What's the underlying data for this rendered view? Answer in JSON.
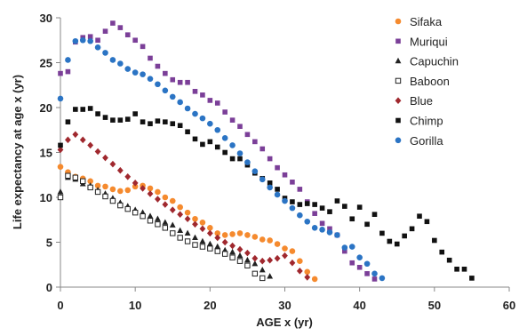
{
  "chart_data": {
    "type": "scatter",
    "xlabel": "AGE x (yr)",
    "ylabel": "Life expectancy at age x (yr)",
    "xlim": [
      0,
      60
    ],
    "ylim": [
      0,
      30
    ],
    "xticks": [
      "0",
      "10",
      "20",
      "30",
      "40",
      "50",
      "60"
    ],
    "yticks": [
      "0",
      "5",
      "10",
      "15",
      "20",
      "25",
      "30"
    ],
    "grid": false,
    "legend_position": "top-right",
    "series": [
      {
        "name": "Sifaka",
        "color": "#f58a2e",
        "marker": "circle",
        "x": [
          0,
          1,
          2,
          3,
          4,
          5,
          6,
          7,
          8,
          9,
          10,
          11,
          12,
          13,
          14,
          15,
          16,
          17,
          18,
          19,
          20,
          21,
          22,
          23,
          24,
          25,
          26,
          27,
          28,
          29,
          30,
          31,
          32,
          33,
          34
        ],
        "y": [
          13.4,
          12.8,
          12.3,
          12.1,
          11.8,
          11.3,
          11.2,
          10.9,
          10.7,
          10.8,
          11.2,
          11.3,
          11.0,
          10.6,
          10.0,
          9.6,
          8.9,
          8.3,
          7.6,
          7.2,
          6.6,
          6.0,
          5.8,
          5.9,
          6.0,
          5.8,
          5.6,
          5.3,
          5.2,
          4.8,
          4.3,
          4.0,
          2.9,
          1.7,
          0.9
        ]
      },
      {
        "name": "Muriqui",
        "color": "#7b3f98",
        "marker": "square",
        "x": [
          0,
          1,
          2,
          3,
          4,
          5,
          6,
          7,
          8,
          9,
          10,
          11,
          12,
          13,
          14,
          15,
          16,
          17,
          18,
          19,
          20,
          21,
          22,
          23,
          24,
          25,
          26,
          27,
          28,
          29,
          30,
          31,
          32,
          33,
          34,
          35,
          36,
          37,
          38,
          39,
          40,
          41,
          42
        ],
        "y": [
          23.8,
          24.0,
          27.3,
          27.8,
          27.9,
          27.5,
          28.5,
          29.4,
          28.9,
          28.1,
          27.5,
          26.8,
          25.5,
          24.6,
          23.8,
          23.1,
          22.8,
          22.8,
          21.8,
          21.4,
          20.8,
          20.5,
          19.5,
          18.6,
          17.9,
          17.0,
          16.2,
          15.4,
          14.3,
          13.3,
          12.5,
          11.7,
          10.9,
          9.5,
          8.2,
          7.1,
          6.5,
          5.8,
          4.0,
          2.7,
          2.2,
          1.5,
          0.9
        ]
      },
      {
        "name": "Capuchin",
        "color": "#222222",
        "marker": "triangle",
        "x": [
          0,
          1,
          2,
          3,
          4,
          5,
          6,
          7,
          8,
          9,
          10,
          11,
          12,
          13,
          14,
          15,
          16,
          17,
          18,
          19,
          20,
          21,
          22,
          23,
          24,
          25,
          26,
          27,
          28
        ],
        "y": [
          10.6,
          12.2,
          12.0,
          11.5,
          11.3,
          10.8,
          10.4,
          9.9,
          9.4,
          9.0,
          8.6,
          8.3,
          7.9,
          7.6,
          7.2,
          6.9,
          6.3,
          6.0,
          5.5,
          5.1,
          4.8,
          4.5,
          4.1,
          3.9,
          3.5,
          3.0,
          2.6,
          1.9,
          1.2
        ]
      },
      {
        "name": "Baboon",
        "color": "#222222",
        "marker": "open-square",
        "x": [
          0,
          1,
          2,
          3,
          4,
          5,
          6,
          7,
          8,
          9,
          10,
          11,
          12,
          13,
          14,
          15,
          16,
          17,
          18,
          19,
          20,
          21,
          22,
          23,
          24,
          25,
          26,
          27
        ],
        "y": [
          10.0,
          12.4,
          12.2,
          11.8,
          11.1,
          10.6,
          10.1,
          9.6,
          9.1,
          8.7,
          8.3,
          7.9,
          7.4,
          7.0,
          6.6,
          6.0,
          5.5,
          5.1,
          4.7,
          4.5,
          4.3,
          4.0,
          3.7,
          3.3,
          2.9,
          2.4,
          1.5,
          1.0
        ]
      },
      {
        "name": "Blue",
        "color": "#a0282e",
        "marker": "diamond",
        "x": [
          0,
          1,
          2,
          3,
          4,
          5,
          6,
          7,
          8,
          9,
          10,
          11,
          12,
          13,
          14,
          15,
          16,
          17,
          18,
          19,
          20,
          21,
          22,
          23,
          24,
          25,
          26,
          27,
          28,
          29,
          30,
          31,
          32,
          33
        ],
        "y": [
          15.3,
          16.4,
          17.0,
          16.4,
          15.8,
          15.1,
          14.4,
          13.7,
          13.0,
          12.3,
          11.6,
          11.0,
          10.4,
          9.8,
          9.2,
          8.6,
          8.1,
          7.6,
          7.0,
          6.5,
          6.0,
          5.5,
          5.0,
          4.6,
          4.2,
          3.8,
          3.2,
          2.9,
          3.0,
          3.2,
          3.5,
          2.7,
          1.8,
          1.1
        ]
      },
      {
        "name": "Chimp",
        "color": "#111111",
        "marker": "square",
        "x": [
          0,
          1,
          2,
          3,
          4,
          5,
          6,
          7,
          8,
          9,
          10,
          11,
          12,
          13,
          14,
          15,
          16,
          17,
          18,
          19,
          20,
          21,
          22,
          23,
          24,
          25,
          26,
          27,
          28,
          29,
          30,
          31,
          32,
          33,
          34,
          35,
          36,
          37,
          38,
          39,
          40,
          41,
          42,
          43,
          44,
          45,
          46,
          47,
          48,
          49,
          50,
          51,
          52,
          53,
          54,
          55
        ],
        "y": [
          15.8,
          18.4,
          19.8,
          19.8,
          19.9,
          19.3,
          18.9,
          18.6,
          18.6,
          18.7,
          19.3,
          18.4,
          18.2,
          18.5,
          18.4,
          18.2,
          18.0,
          17.3,
          16.5,
          15.9,
          16.2,
          15.6,
          15.0,
          14.3,
          14.3,
          13.6,
          12.7,
          12.1,
          11.6,
          10.9,
          9.9,
          9.5,
          9.2,
          9.3,
          9.2,
          8.8,
          8.4,
          9.6,
          9.0,
          7.6,
          8.9,
          7.0,
          8.1,
          6.0,
          5.1,
          4.8,
          5.7,
          6.5,
          7.9,
          7.3,
          5.2,
          3.9,
          3.0,
          2.0,
          2.0,
          1.0
        ]
      },
      {
        "name": "Gorilla",
        "color": "#2b74c4",
        "marker": "circle",
        "x": [
          0,
          1,
          2,
          3,
          4,
          5,
          6,
          7,
          8,
          9,
          10,
          11,
          12,
          13,
          14,
          15,
          16,
          17,
          18,
          19,
          20,
          21,
          22,
          23,
          24,
          25,
          26,
          27,
          28,
          29,
          30,
          31,
          32,
          33,
          34,
          35,
          36,
          37,
          38,
          39,
          40,
          41,
          42,
          43
        ],
        "y": [
          21.0,
          25.3,
          27.4,
          27.5,
          27.4,
          26.7,
          26.1,
          25.3,
          24.9,
          24.3,
          23.9,
          23.7,
          23.2,
          22.6,
          21.9,
          21.2,
          20.6,
          19.9,
          19.3,
          18.8,
          18.2,
          17.5,
          16.6,
          15.8,
          14.9,
          13.9,
          12.9,
          12.0,
          11.1,
          10.3,
          9.6,
          8.8,
          8.0,
          7.3,
          6.6,
          6.4,
          6.1,
          5.8,
          4.4,
          4.5,
          3.3,
          2.6,
          1.5,
          1.0
        ]
      }
    ]
  }
}
